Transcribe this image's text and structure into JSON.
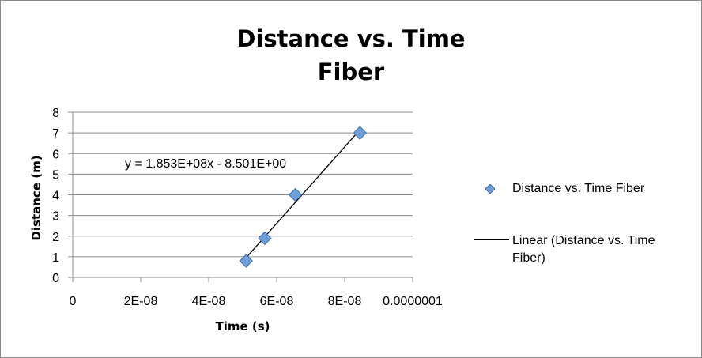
{
  "chart_data": {
    "type": "scatter",
    "title_lines": [
      "Distance vs. Time",
      "Fiber"
    ],
    "xlabel": "Time (s)",
    "ylabel": "Distance (m)",
    "xlim": [
      0,
      1e-07
    ],
    "ylim": [
      0,
      8
    ],
    "x_ticks": [
      0,
      2e-08,
      4e-08,
      6e-08,
      8e-08,
      1e-07
    ],
    "x_tick_labels": [
      "0",
      "2E-08",
      "4E-08",
      "6E-08",
      "8E-08",
      "0.0000001"
    ],
    "y_ticks": [
      0,
      1,
      2,
      3,
      4,
      5,
      6,
      7,
      8
    ],
    "y_tick_labels": [
      "0",
      "1",
      "2",
      "3",
      "4",
      "5",
      "6",
      "7",
      "8"
    ],
    "grid": "horizontal",
    "legend_position": "right",
    "series": [
      {
        "name": "Distance vs. Time Fiber",
        "color": "#6f9fd8",
        "marker": "diamond",
        "x": [
          5.1e-08,
          5.65e-08,
          6.55e-08,
          8.45e-08
        ],
        "y": [
          0.8,
          1.9,
          4.0,
          7.0
        ]
      }
    ],
    "trendline": {
      "name": "Linear (Distance vs. Time Fiber)",
      "legend_lines": [
        "Linear (Distance vs. Time",
        "Fiber)"
      ],
      "equation": "y = 1.853E+08x - 8.501E+00",
      "slope": 185300000,
      "intercept": -8.501,
      "x_range": [
        5.07e-08,
        8.45e-08
      ],
      "color": "#000000"
    }
  }
}
